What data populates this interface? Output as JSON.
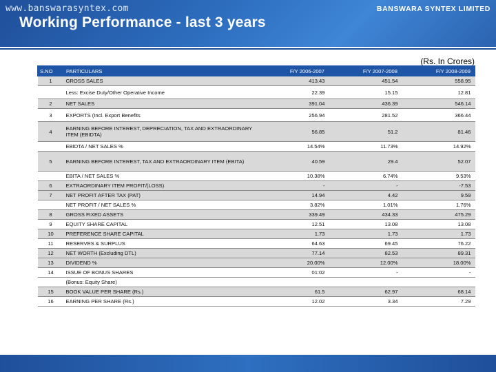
{
  "header": {
    "title": "Working Performance - last 3 years"
  },
  "units_note": "(Rs. In Crores)",
  "table": {
    "columns": [
      "S.NO",
      "PARTICULARS",
      "F/Y 2006-2007",
      "F/Y 2007-2008",
      "F/Y 2008-2009"
    ],
    "rows": [
      {
        "sno": "1",
        "label": "GROSS SALES",
        "v1": "413.43",
        "v2": "451.54",
        "v3": "558.95"
      },
      {
        "sno": "",
        "label": "Less: Excise Duty/Other Operative Income",
        "v1": "22.39",
        "v2": "15.15",
        "v3": "12.81"
      },
      {
        "sno": "2",
        "label": "NET SALES",
        "v1": "391.04",
        "v2": "436.39",
        "v3": "546.14"
      },
      {
        "sno": "3",
        "label": "EXPORTS (Incl. Export Benefits",
        "v1": "256.94",
        "v2": "281.52",
        "v3": "366.44"
      },
      {
        "sno": "4",
        "label": "EARNING BEFORE INTEREST, DEPRECIATION, TAX AND EXTRAORDINARY ITEM (EBIDTA)",
        "v1": "56.85",
        "v2": "51.2",
        "v3": "81.46"
      },
      {
        "sno": "",
        "label": "EBIDTA / NET SALES %",
        "v1": "14.54%",
        "v2": "11.73%",
        "v3": "14.92%"
      },
      {
        "sno": "5",
        "label": "EARNING BEFORE INTEREST, TAX AND EXTRAORDINARY ITEM (EBITA)",
        "v1": "40.59",
        "v2": "29.4",
        "v3": "52.07"
      },
      {
        "sno": "",
        "label": "EBITA / NET SALES %",
        "v1": "10.38%",
        "v2": "6.74%",
        "v3": "9.53%"
      },
      {
        "sno": "6",
        "label": "EXTRAORDINARY ITEM PROFIT/(LOSS)",
        "v1": "-",
        "v2": "-",
        "v3": "-7.53"
      },
      {
        "sno": "7",
        "label": "NET PROFIT AFTER TAX (PAT)",
        "v1": "14.94",
        "v2": "4.42",
        "v3": "9.59"
      },
      {
        "sno": "",
        "label": "NET PROFIT / NET SALES %",
        "v1": "3.82%",
        "v2": "1.01%",
        "v3": "1.76%"
      },
      {
        "sno": "8",
        "label": "GROSS FIXED ASSETS",
        "v1": "339.49",
        "v2": "434.33",
        "v3": "475.29"
      },
      {
        "sno": "9",
        "label": "EQUITY SHARE CAPITAL",
        "v1": "12.51",
        "v2": "13.08",
        "v3": "13.08"
      },
      {
        "sno": "10",
        "label": "PREFERENCE SHARE CAPITAL",
        "v1": "1.73",
        "v2": "1.73",
        "v3": "1.73"
      },
      {
        "sno": "11",
        "label": "RESERVES & SURPLUS",
        "v1": "64.63",
        "v2": "69.45",
        "v3": "76.22"
      },
      {
        "sno": "12",
        "label": "NET WORTH (Excluding DTL)",
        "v1": "77.14",
        "v2": "82.53",
        "v3": "89.31"
      },
      {
        "sno": "13",
        "label": "DIVIDEND %",
        "v1": "20.00%",
        "v2": "12.00%",
        "v3": "18.00%"
      },
      {
        "sno": "14",
        "label": "ISSUE OF BONUS SHARES",
        "v1": "01:02",
        "v2": "-",
        "v3": "-"
      },
      {
        "sno": "",
        "label": "(Bonus: Equity Share)",
        "v1": "",
        "v2": "",
        "v3": ""
      },
      {
        "sno": "15",
        "label": "BOOK VALUE PER SHARE (Rs.)",
        "v1": "61.5",
        "v2": "62.97",
        "v3": "68.14"
      },
      {
        "sno": "16",
        "label": "EARNING PER SHARE (Rs.)",
        "v1": "12.02",
        "v2": "3.34",
        "v3": "7.29"
      }
    ]
  },
  "footer": {
    "website": "www.banswarasyntex.com",
    "company": "BANSWARA SYNTEX LIMITED"
  },
  "colors": {
    "header_blue": "#2e6fc0",
    "table_header": "#1f55a6",
    "shade_row": "#d9d9d9"
  }
}
